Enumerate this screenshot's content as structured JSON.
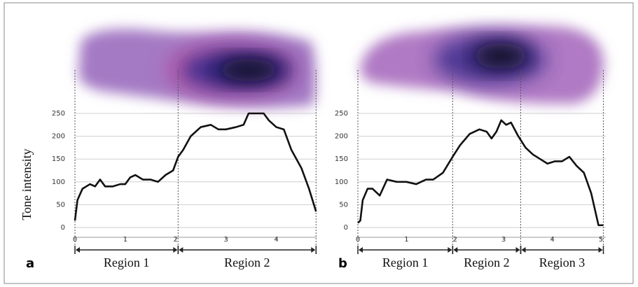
{
  "chart_data": [
    {
      "type": "line",
      "panel_label": "a",
      "ylabel": "Tone intensity",
      "x": [
        0,
        0.05,
        0.15,
        0.3,
        0.4,
        0.5,
        0.6,
        0.75,
        0.9,
        1.0,
        1.1,
        1.2,
        1.35,
        1.5,
        1.65,
        1.8,
        1.95,
        2.05,
        2.15,
        2.3,
        2.5,
        2.7,
        2.85,
        3.0,
        3.2,
        3.35,
        3.45,
        3.6,
        3.75,
        3.85,
        4.0,
        4.15,
        4.3,
        4.5,
        4.65,
        4.79
      ],
      "series": [
        {
          "color": "#111111",
          "values": [
            15,
            60,
            85,
            95,
            90,
            105,
            90,
            90,
            95,
            95,
            110,
            115,
            105,
            105,
            100,
            115,
            125,
            155,
            170,
            200,
            220,
            225,
            215,
            215,
            220,
            225,
            250,
            250,
            250,
            235,
            220,
            215,
            170,
            130,
            85,
            35
          ]
        }
      ],
      "xlim": [
        0,
        4.8
      ],
      "xticks": [
        0,
        1,
        2,
        3,
        4
      ],
      "ylim": [
        0,
        250
      ],
      "yticks": [
        0,
        50,
        100,
        150,
        200,
        250
      ],
      "grid": true,
      "regions": [
        {
          "label": "Region 1",
          "start": 0,
          "end": 2.05
        },
        {
          "label": "Region 2",
          "start": 2.05,
          "end": 4.79
        }
      ]
    },
    {
      "type": "line",
      "panel_label": "b",
      "x": [
        0,
        0.05,
        0.1,
        0.2,
        0.3,
        0.45,
        0.6,
        0.8,
        1.0,
        1.2,
        1.4,
        1.55,
        1.75,
        1.95,
        2.1,
        2.3,
        2.5,
        2.65,
        2.75,
        2.85,
        2.95,
        3.05,
        3.15,
        3.3,
        3.45,
        3.6,
        3.75,
        3.9,
        4.05,
        4.2,
        4.35,
        4.5,
        4.65,
        4.8,
        4.95,
        5.05
      ],
      "series": [
        {
          "color": "#111111",
          "values": [
            10,
            15,
            60,
            85,
            85,
            70,
            105,
            100,
            100,
            95,
            105,
            105,
            120,
            155,
            180,
            205,
            215,
            210,
            195,
            210,
            235,
            225,
            230,
            200,
            175,
            160,
            150,
            140,
            145,
            145,
            155,
            135,
            120,
            75,
            5,
            5
          ]
        }
      ],
      "xlim": [
        0,
        5.1
      ],
      "xticks": [
        0,
        1,
        2,
        3,
        4,
        5
      ],
      "ylim": [
        0,
        250
      ],
      "yticks": [
        0,
        50,
        100,
        150,
        200,
        250
      ],
      "grid": true,
      "regions": [
        {
          "label": "Region 1",
          "start": 0,
          "end": 1.95
        },
        {
          "label": "Region 2",
          "start": 1.95,
          "end": 3.35
        },
        {
          "label": "Region 3",
          "start": 3.35,
          "end": 5.05
        }
      ]
    }
  ]
}
